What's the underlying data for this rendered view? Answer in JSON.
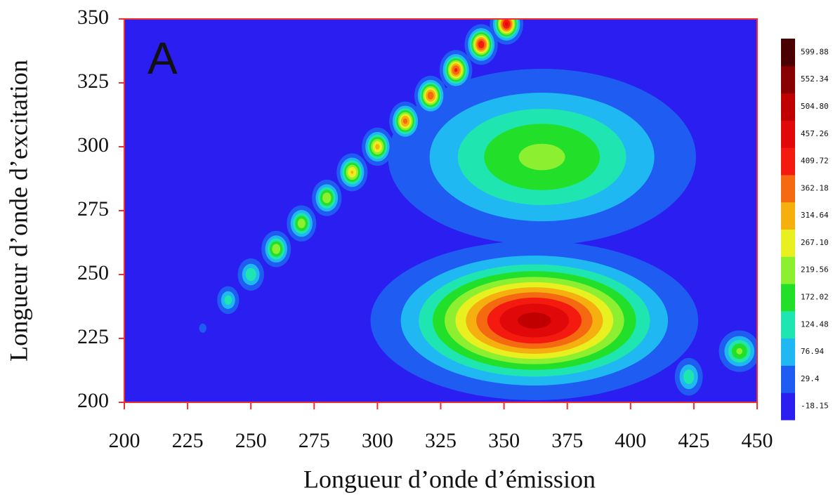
{
  "chart_data": {
    "type": "contour",
    "annotation": "A",
    "xlabel": "Longueur d’onde d’émission",
    "ylabel": "Longueur d’onde d’excitation",
    "xlim": [
      200,
      450
    ],
    "ylim": [
      200,
      350
    ],
    "xticks": [
      200,
      225,
      250,
      275,
      300,
      325,
      350,
      375,
      400,
      425,
      450
    ],
    "yticks": [
      200,
      225,
      250,
      275,
      300,
      325,
      350
    ],
    "border_color": "#f03030",
    "colorbar": {
      "levels": [
        -18.15,
        29.4,
        76.94,
        124.48,
        172.02,
        219.56,
        {
          "value": 267.1,
          "label": "267.10"
        },
        314.64,
        362.18,
        409.72,
        457.26,
        {
          "value": 504.8,
          "label": "504.80"
        },
        552.34,
        599.88
      ],
      "colors": [
        "#2a1ff0",
        "#1f5cf2",
        "#20b8f2",
        "#1fe6b0",
        "#22e02a",
        "#8cf030",
        "#e8f020",
        "#f5b010",
        "#f56a10",
        "#f51a10",
        "#e00808",
        "#c00000",
        "#880000",
        "#4a0000"
      ]
    },
    "peaks": [
      {
        "x": 231,
        "y": 229,
        "value": 60,
        "sx": 1.2,
        "sy": 1.5
      },
      {
        "x": 241,
        "y": 240,
        "value": 150,
        "sx": 2.4,
        "sy": 3
      },
      {
        "x": 250,
        "y": 250,
        "value": 165,
        "sx": 2.8,
        "sy": 3.4
      },
      {
        "x": 260,
        "y": 260,
        "value": 260,
        "sx": 2.8,
        "sy": 3.4
      },
      {
        "x": 270,
        "y": 270,
        "value": 255,
        "sx": 2.8,
        "sy": 3.4
      },
      {
        "x": 280,
        "y": 280,
        "value": 265,
        "sx": 2.8,
        "sy": 3.4
      },
      {
        "x": 290,
        "y": 290,
        "value": 320,
        "sx": 2.8,
        "sy": 3.4
      },
      {
        "x": 300,
        "y": 300,
        "value": 330,
        "sx": 2.8,
        "sy": 3.4
      },
      {
        "x": 311,
        "y": 310,
        "value": 380,
        "sx": 2.8,
        "sy": 3.4
      },
      {
        "x": 321,
        "y": 320,
        "value": 400,
        "sx": 2.8,
        "sy": 3.4
      },
      {
        "x": 331,
        "y": 330,
        "value": 420,
        "sx": 2.8,
        "sy": 3.4
      },
      {
        "x": 341,
        "y": 340,
        "value": 450,
        "sx": 2.8,
        "sy": 3.4
      },
      {
        "x": 351,
        "y": 348,
        "value": 470,
        "sx": 2.8,
        "sy": 3.4
      },
      {
        "x": 365,
        "y": 296,
        "value": 230,
        "sx": 30,
        "sy": 17
      },
      {
        "x": 362,
        "y": 232,
        "value": 520,
        "sx": 27,
        "sy": 13
      },
      {
        "x": 423,
        "y": 210,
        "value": 160,
        "sx": 3,
        "sy": 4
      },
      {
        "x": 443,
        "y": 220,
        "value": 230,
        "sx": 4,
        "sy": 4
      }
    ]
  }
}
